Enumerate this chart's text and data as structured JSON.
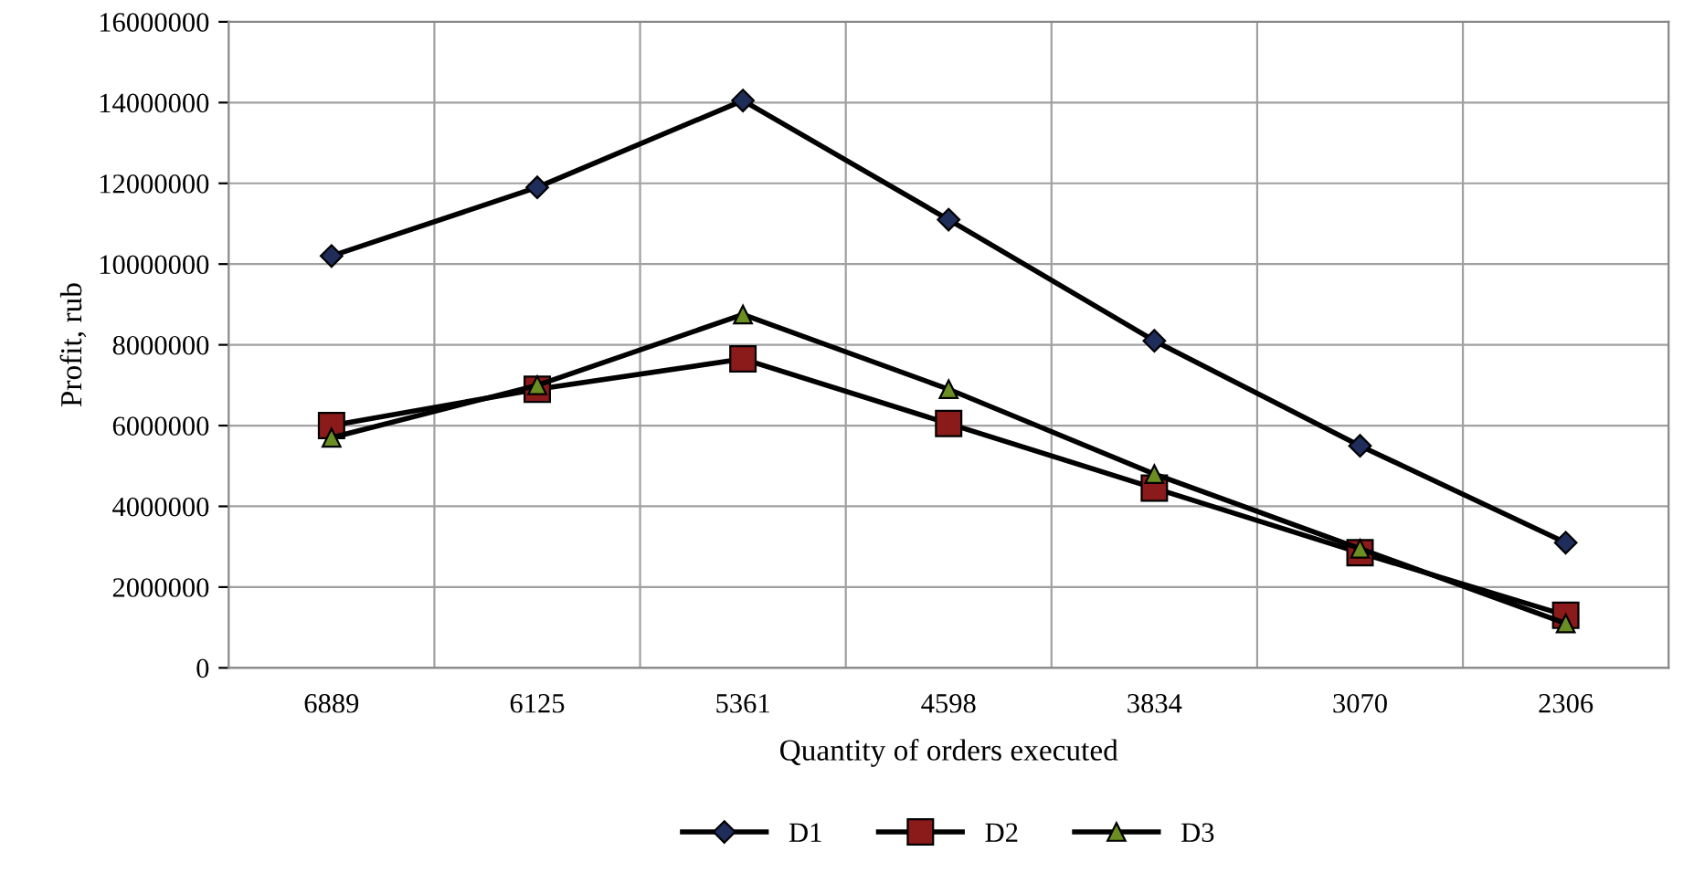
{
  "chart_data": {
    "type": "line",
    "xlabel": "Quantity of orders executed",
    "ylabel": "Profit, rub",
    "categories": [
      "6889",
      "6125",
      "5361",
      "4598",
      "3834",
      "3070",
      "2306"
    ],
    "series": [
      {
        "name": "D1",
        "color": "#1f2d5a",
        "marker": "diamond",
        "values": [
          10200000,
          11900000,
          14050000,
          11100000,
          8100000,
          5500000,
          3100000
        ]
      },
      {
        "name": "D2",
        "color": "#8b1a1a",
        "marker": "square",
        "values": [
          6000000,
          6900000,
          7650000,
          6050000,
          4450000,
          2850000,
          1300000
        ]
      },
      {
        "name": "D3",
        "color": "#6b8e23",
        "marker": "triangle",
        "values": [
          5700000,
          7000000,
          8750000,
          6900000,
          4800000,
          2950000,
          1100000
        ]
      }
    ],
    "ylim": [
      0,
      16000000
    ],
    "yticks": [
      0,
      2000000,
      4000000,
      6000000,
      8000000,
      10000000,
      12000000,
      14000000,
      16000000
    ],
    "grid": true,
    "legend": "bottom",
    "line_style": "solid"
  }
}
